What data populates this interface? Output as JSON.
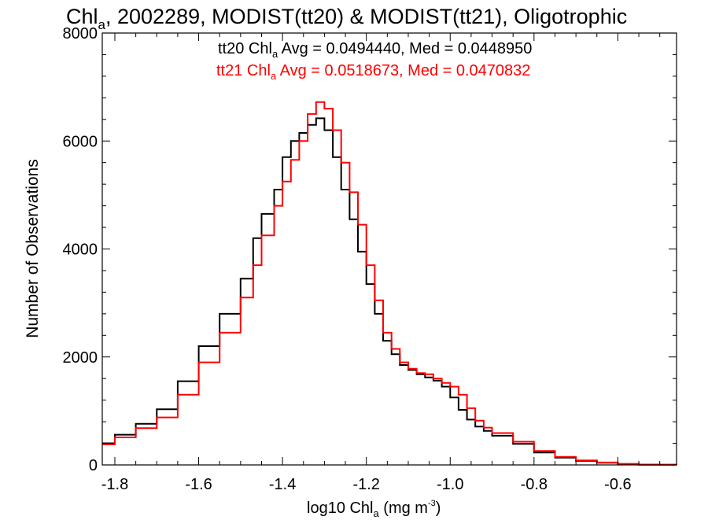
{
  "chart_data": {
    "type": "line",
    "step": true,
    "title": {
      "pre": "Chl",
      "sub": "a",
      "post": ", 2002289, MODIST(tt20) & MODIST(tt21), Oligotrophic"
    },
    "xlabel": {
      "pre": "log10 Chl",
      "sub": "a",
      "mid": " (mg m",
      "sup": "-3",
      "post": ")"
    },
    "ylabel": "Number of Observations",
    "xlim": [
      -1.83,
      -0.46
    ],
    "ylim": [
      0,
      8000
    ],
    "xticks": [
      "-1.8",
      "-1.6",
      "-1.4",
      "-1.2",
      "-1.0",
      "-0.8",
      "-0.6"
    ],
    "xtick_values": [
      -1.8,
      -1.6,
      -1.4,
      -1.2,
      -1.0,
      -0.8,
      -0.6
    ],
    "yticks": [
      "0",
      "2000",
      "4000",
      "6000",
      "8000"
    ],
    "ytick_values": [
      0,
      2000,
      4000,
      6000,
      8000
    ],
    "annotations": [
      {
        "pre": "tt20 Chl",
        "sub": "a",
        "post": " Avg = 0.0494440, Med = 0.0448950",
        "color": "#000000"
      },
      {
        "pre": "tt21 Chl",
        "sub": "a",
        "post": " Avg = 0.0518673, Med = 0.0470832",
        "color": "#ff0000"
      }
    ],
    "series": [
      {
        "color": "#000000",
        "x": [
          -1.83,
          -1.8,
          -1.75,
          -1.7,
          -1.65,
          -1.6,
          -1.55,
          -1.5,
          -1.47,
          -1.45,
          -1.42,
          -1.4,
          -1.38,
          -1.36,
          -1.34,
          -1.32,
          -1.3,
          -1.28,
          -1.26,
          -1.24,
          -1.22,
          -1.2,
          -1.18,
          -1.16,
          -1.14,
          -1.12,
          -1.1,
          -1.08,
          -1.06,
          -1.04,
          -1.02,
          -1.0,
          -0.98,
          -0.96,
          -0.94,
          -0.92,
          -0.9,
          -0.85,
          -0.8,
          -0.75,
          -0.7,
          -0.65,
          -0.6,
          -0.55,
          -0.5,
          -0.46
        ],
        "y": [
          400,
          560,
          760,
          1030,
          1550,
          2200,
          2800,
          3450,
          4200,
          4650,
          5100,
          5700,
          6000,
          6150,
          6300,
          6420,
          6200,
          5700,
          5100,
          4550,
          3950,
          3350,
          2800,
          2300,
          2050,
          1850,
          1760,
          1680,
          1620,
          1560,
          1450,
          1250,
          1020,
          840,
          710,
          630,
          540,
          390,
          230,
          135,
          75,
          40,
          15,
          5,
          3,
          0
        ]
      },
      {
        "color": "#ff0000",
        "x": [
          -1.83,
          -1.8,
          -1.75,
          -1.7,
          -1.65,
          -1.6,
          -1.55,
          -1.5,
          -1.47,
          -1.45,
          -1.42,
          -1.4,
          -1.38,
          -1.36,
          -1.34,
          -1.32,
          -1.3,
          -1.28,
          -1.26,
          -1.24,
          -1.22,
          -1.2,
          -1.18,
          -1.16,
          -1.14,
          -1.12,
          -1.1,
          -1.08,
          -1.06,
          -1.04,
          -1.02,
          -1.0,
          -0.98,
          -0.96,
          -0.94,
          -0.92,
          -0.9,
          -0.85,
          -0.8,
          -0.75,
          -0.7,
          -0.65,
          -0.6,
          -0.55,
          -0.5,
          -0.46
        ],
        "y": [
          380,
          510,
          680,
          880,
          1300,
          1900,
          2450,
          3100,
          3700,
          4250,
          4800,
          5250,
          5650,
          6000,
          6500,
          6720,
          6600,
          6200,
          5600,
          5050,
          4450,
          3700,
          3050,
          2450,
          2150,
          1900,
          1780,
          1700,
          1680,
          1600,
          1520,
          1450,
          1300,
          1050,
          820,
          690,
          590,
          430,
          260,
          150,
          85,
          45,
          20,
          8,
          3,
          0
        ]
      }
    ]
  }
}
